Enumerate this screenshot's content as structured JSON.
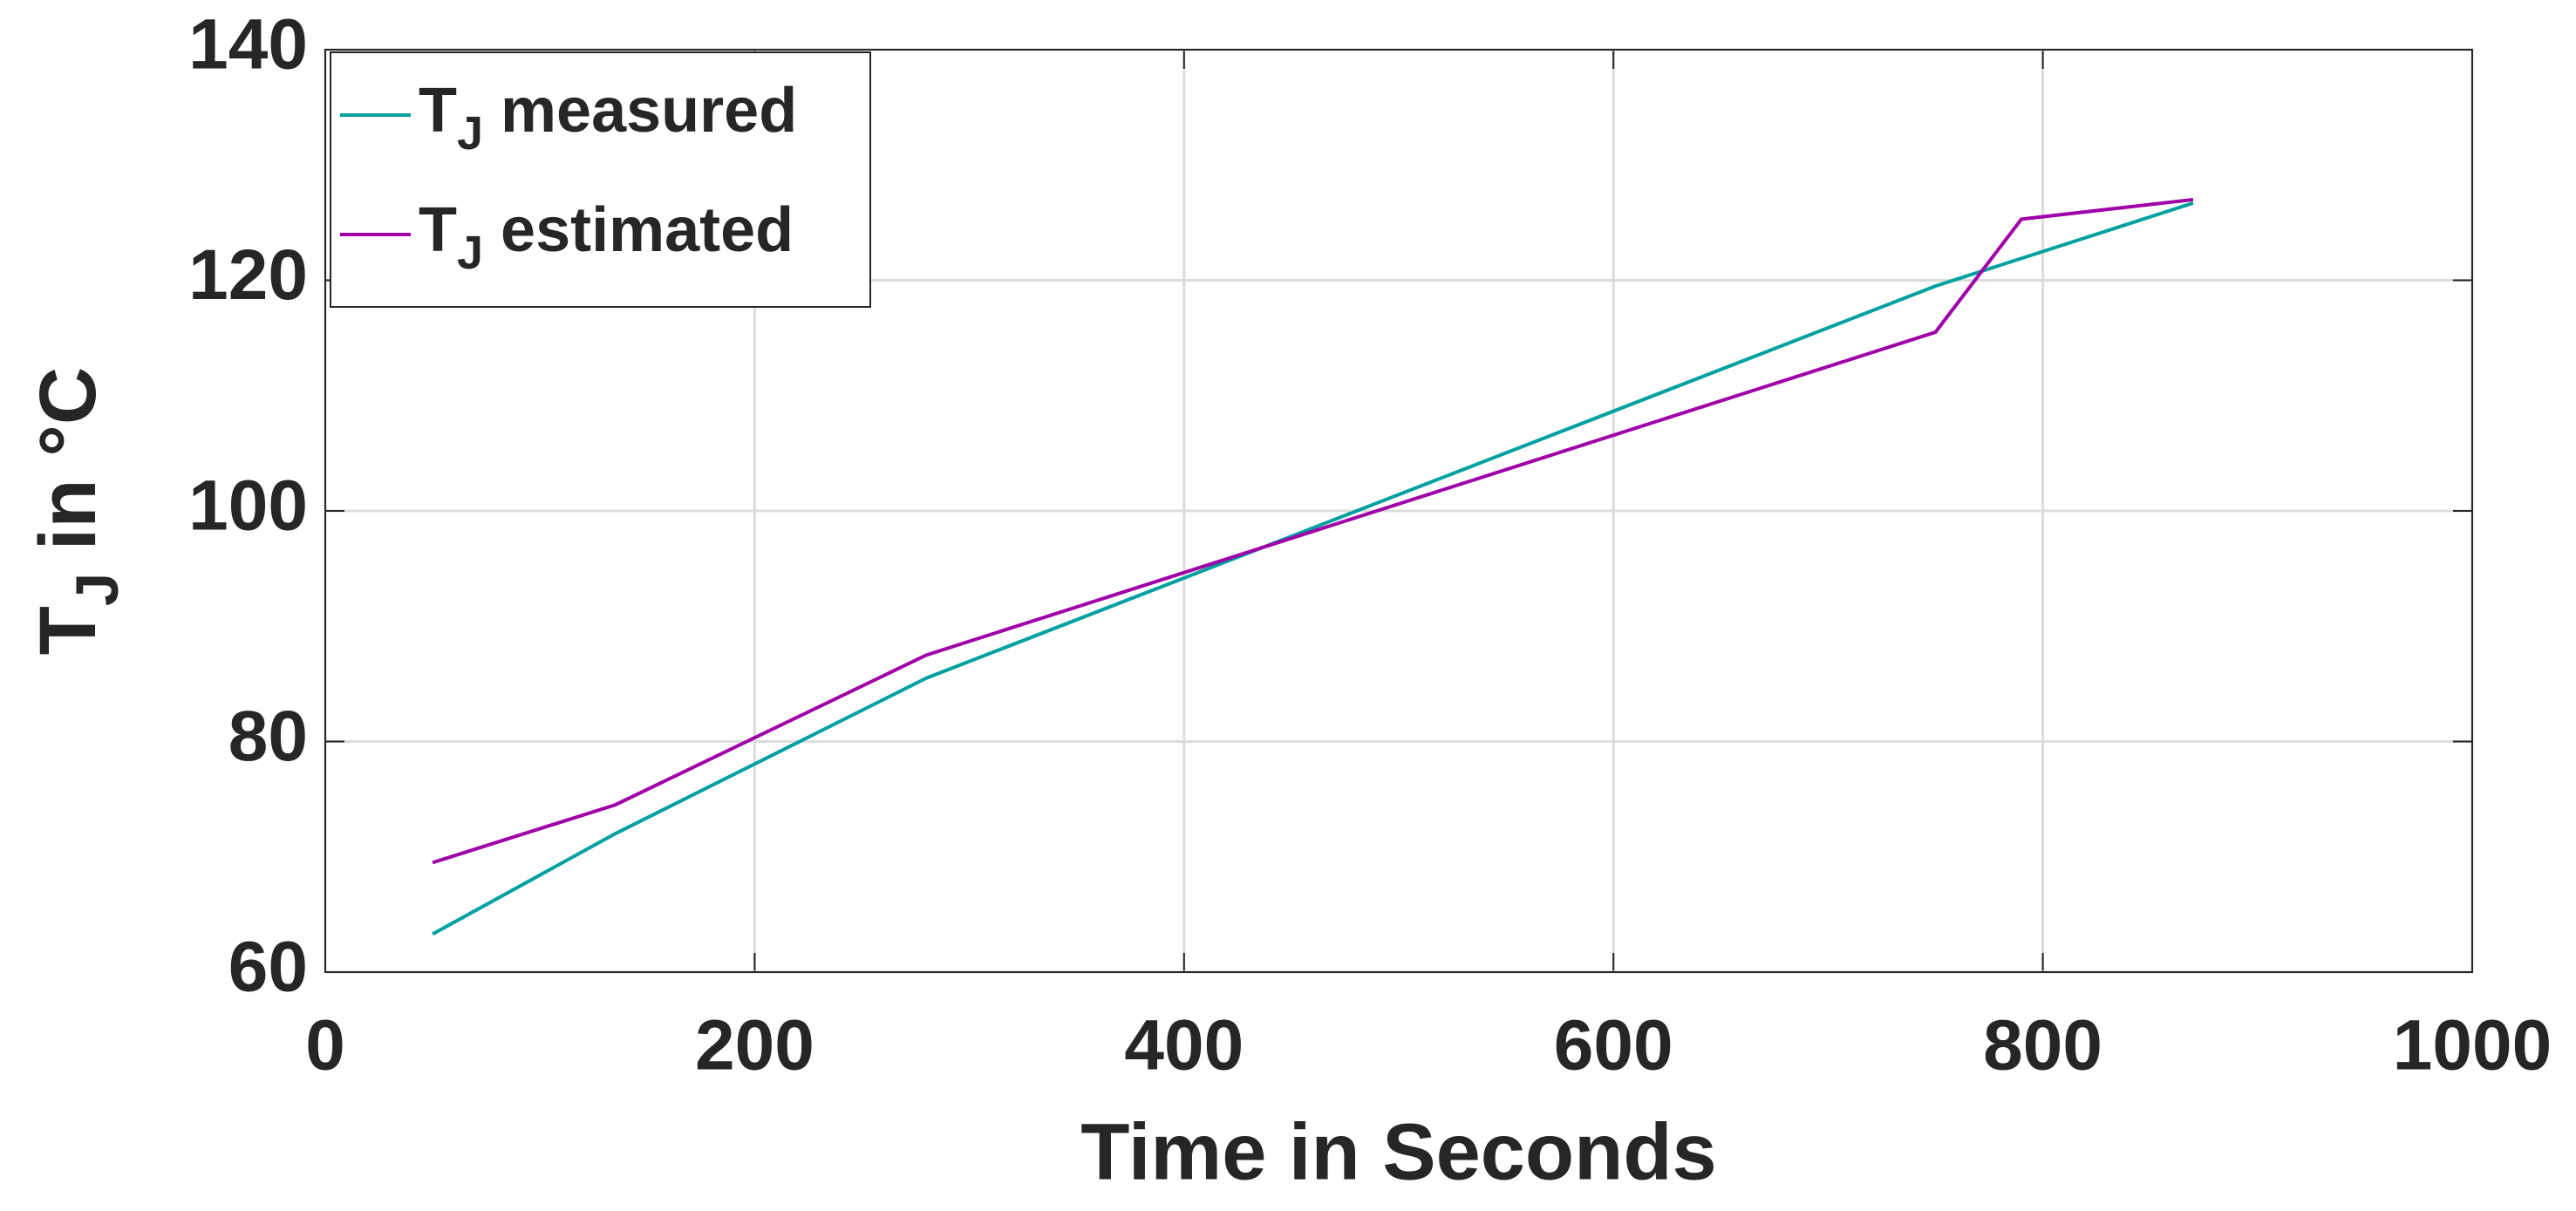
{
  "chart_data": {
    "type": "line",
    "xlabel": "Time in Seconds",
    "ylabel": "TJ in °C",
    "xlim": [
      0,
      1000
    ],
    "xticks": [
      0,
      200,
      400,
      600,
      800,
      1000
    ],
    "ylim": [
      60,
      140
    ],
    "yticks": [
      60,
      80,
      100,
      120,
      140
    ],
    "grid": true,
    "legend": "upper left",
    "series": [
      {
        "name": "TJ measured",
        "color": "#00a0a0",
        "x": [
          50,
          135,
          280,
          750,
          870
        ],
        "values": [
          63.3,
          72,
          85.5,
          119.5,
          126.7
        ]
      },
      {
        "name": "TJ estimated",
        "color": "#a000a8",
        "x": [
          50,
          135,
          280,
          750,
          790,
          870
        ],
        "values": [
          69.5,
          74.5,
          87.5,
          115.5,
          125.3,
          127
        ]
      }
    ]
  }
}
